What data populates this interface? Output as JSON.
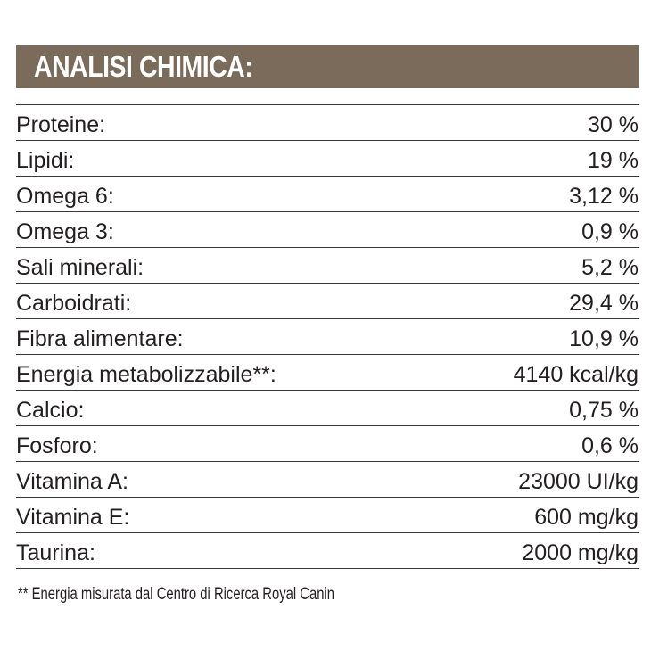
{
  "header": {
    "title": "ANALISI CHIMICA:"
  },
  "colors": {
    "header_background": "#7b6b5a",
    "header_text": "#ffffff",
    "text": "#231f20",
    "rule": "#3a3a3a"
  },
  "rows": [
    {
      "label": "Proteine:",
      "value": "30 %"
    },
    {
      "label": "Lipidi:",
      "value": "19 %"
    },
    {
      "label": "Omega 6:",
      "value": "3,12 %"
    },
    {
      "label": "Omega 3:",
      "value": "0,9 %"
    },
    {
      "label": "Sali minerali:",
      "value": "5,2 %"
    },
    {
      "label": "Carboidrati:",
      "value": "29,4 %"
    },
    {
      "label": "Fibra alimentare:",
      "value": "10,9 %"
    },
    {
      "label": "Energia metabolizzabile**:",
      "value": "4140 kcal/kg"
    },
    {
      "label": "Calcio:",
      "value": "0,75 %"
    },
    {
      "label": "Fosforo:",
      "value": "0,6 %"
    },
    {
      "label": "Vitamina A:",
      "value": "23000 UI/kg"
    },
    {
      "label": "Vitamina E:",
      "value": "600 mg/kg"
    },
    {
      "label": "Taurina:",
      "value": "2000 mg/kg"
    }
  ],
  "footnote": "** Energia misurata dal Centro di Ricerca Royal Canin"
}
